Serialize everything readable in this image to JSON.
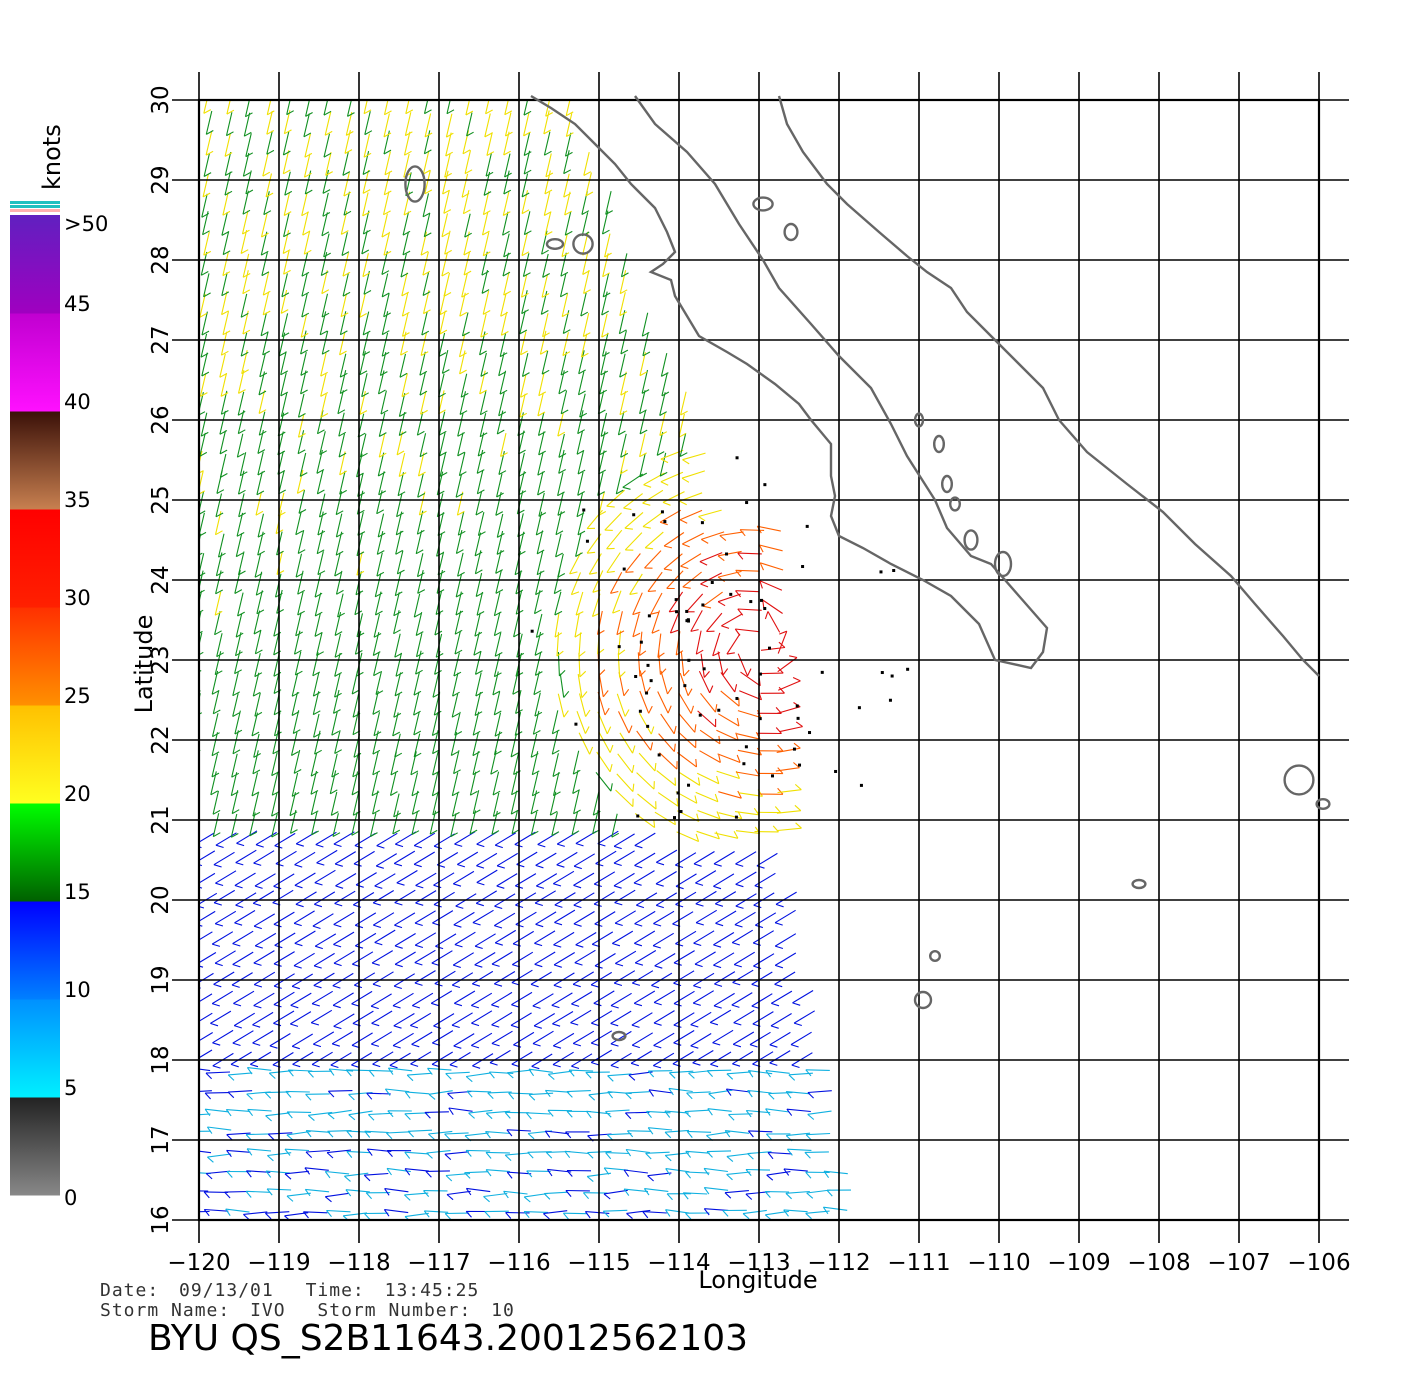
{
  "chart_data": {
    "type": "scatter",
    "subtype": "wind-vector-map",
    "xlabel": "Longitude",
    "ylabel": "Latitude",
    "xlim": [
      -120,
      -106
    ],
    "ylim": [
      16,
      30
    ],
    "x_ticks": [
      "-120",
      "-119",
      "-118",
      "-117",
      "-116",
      "-115",
      "-114",
      "-113",
      "-112",
      "-111",
      "-110",
      "-109",
      "-108",
      "-107",
      "-106"
    ],
    "y_ticks": [
      "16",
      "17",
      "18",
      "19",
      "20",
      "21",
      "22",
      "23",
      "24",
      "25",
      "26",
      "27",
      "28",
      "29",
      "30"
    ],
    "grid": true,
    "colorbar": {
      "unit": "knots",
      "placement": "left",
      "labels": [
        "0",
        "5",
        "10",
        "15",
        "20",
        "25",
        "30",
        "35",
        "40",
        "45",
        ">50"
      ],
      "bands": [
        {
          "from": 0,
          "to": 5,
          "colors": [
            "#888888",
            "#222222"
          ]
        },
        {
          "from": 5,
          "to": 10,
          "colors": [
            "#00f0ff",
            "#0090ff"
          ]
        },
        {
          "from": 10,
          "to": 15,
          "colors": [
            "#0080ff",
            "#0000ff"
          ]
        },
        {
          "from": 15,
          "to": 20,
          "colors": [
            "#006000",
            "#00ff00"
          ]
        },
        {
          "from": 20,
          "to": 25,
          "colors": [
            "#ffff20",
            "#ffc000"
          ]
        },
        {
          "from": 25,
          "to": 30,
          "colors": [
            "#ff9000",
            "#ff3000"
          ]
        },
        {
          "from": 30,
          "to": 35,
          "colors": [
            "#ff2000",
            "#ff0000"
          ]
        },
        {
          "from": 35,
          "to": 40,
          "colors": [
            "#c88050",
            "#3a1008"
          ]
        },
        {
          "from": 40,
          "to": 45,
          "colors": [
            "#ff10ff",
            "#c000d0"
          ]
        },
        {
          "from": 45,
          "to": 50,
          "colors": [
            "#a000c0",
            "#6020c0"
          ]
        }
      ],
      "top_marks": [
        "#ffb0b0",
        "#20c0c0",
        "#20c0c0"
      ]
    },
    "storm_center": {
      "lon": -113,
      "lat": 23.2
    },
    "coastline_color": "#666666",
    "vector_colors": {
      "calm": "#222222",
      "light": "#10b0e0",
      "moderate": "#0010e0",
      "fresh": "#109020",
      "strong": "#f0e000",
      "gale": "#ff6000",
      "storm": "#e01010",
      "extreme": "#a010c0"
    }
  },
  "info": {
    "date_label": "Date:",
    "date": "09/13/01",
    "time_label": "Time:",
    "time": "13:45:25",
    "storm_name_label": "Storm  Name:",
    "storm_name": "IVO",
    "storm_number_label": "Storm  Number:",
    "storm_number": "10"
  },
  "title": "BYU  QS_S2B11643.20012562103"
}
